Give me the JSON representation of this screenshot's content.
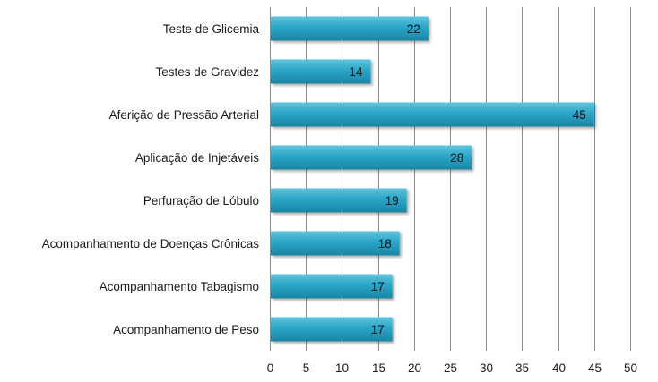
{
  "chart_data": {
    "type": "bar",
    "orientation": "horizontal",
    "categories": [
      "Teste de Glicemia",
      "Testes de Gravidez",
      "Aferição de Pressão Arterial",
      "Aplicação de Injetáveis",
      "Perfuração de Lóbulo",
      "Acompanhamento de Doenças Crônicas",
      "Acompanhamento Tabagismo",
      "Acompanhamento de Peso"
    ],
    "values": [
      22,
      14,
      45,
      28,
      19,
      18,
      17,
      17
    ],
    "data_labels": [
      "22",
      "14",
      "45",
      "28",
      "19",
      "18",
      "17",
      "17"
    ],
    "xlim": [
      0,
      50
    ],
    "x_ticks": [
      0,
      5,
      10,
      15,
      20,
      25,
      30,
      35,
      40,
      45,
      50
    ],
    "x_tick_labels": [
      "0",
      "5",
      "10",
      "15",
      "20",
      "25",
      "30",
      "35",
      "40",
      "45",
      "50"
    ],
    "title": "",
    "xlabel": "",
    "ylabel": "",
    "grid": "vertical",
    "legend": "none",
    "colors": {
      "bar_top": "#5fc4de",
      "bar_mid": "#2aa6c8",
      "bar_bottom": "#1a86a6",
      "grid": "#8c8c8c",
      "text": "#1a1a1a"
    }
  }
}
